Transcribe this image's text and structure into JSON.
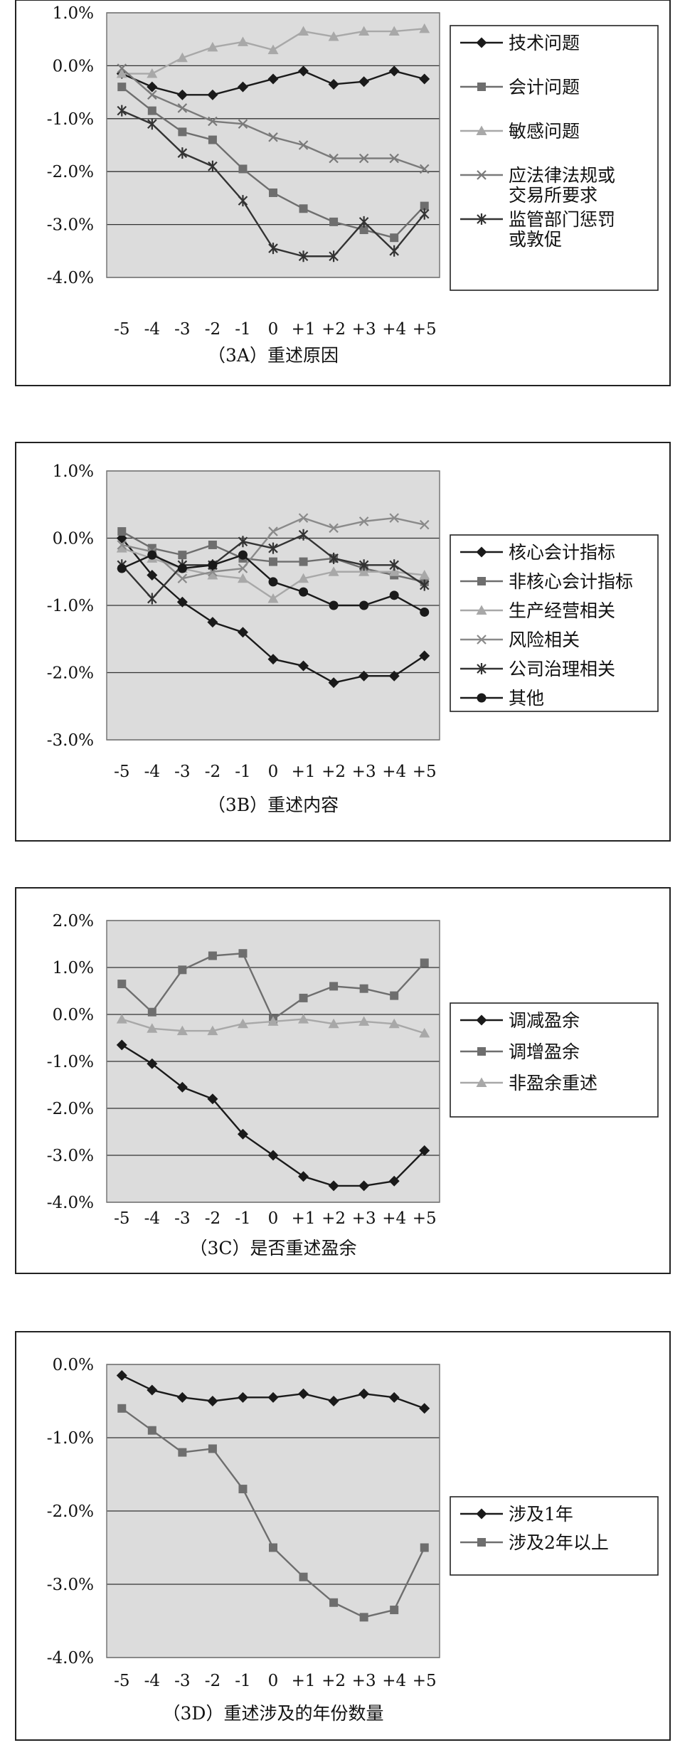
{
  "chart_data": [
    {
      "id": "3A",
      "type": "line",
      "caption": "（3A）重述原因",
      "x": [
        "-5",
        "-4",
        "-3",
        "-2",
        "-1",
        "0",
        "+1",
        "+2",
        "+3",
        "+4",
        "+5"
      ],
      "ylim": [
        -4,
        1
      ],
      "yticks": [
        1,
        0,
        -1,
        -2,
        -3,
        -4
      ],
      "ytick_labels": [
        "1.0%",
        "0.0%",
        "-1.0%",
        "-2.0%",
        "-3.0%",
        "-4.0%"
      ],
      "grid": true,
      "legend_position": "right",
      "series": [
        {
          "name": "技术问题",
          "marker": "diamond",
          "color": "#1a1a1a",
          "values": [
            -0.15,
            -0.4,
            -0.55,
            -0.55,
            -0.4,
            -0.25,
            -0.1,
            -0.35,
            -0.3,
            -0.1,
            -0.25
          ]
        },
        {
          "name": "会计问题",
          "marker": "square",
          "color": "#6e6e6e",
          "values": [
            -0.4,
            -0.85,
            -1.25,
            -1.4,
            -1.95,
            -2.4,
            -2.7,
            -2.95,
            -3.1,
            -3.25,
            -2.65
          ]
        },
        {
          "name": "敏感问题",
          "marker": "triangle",
          "color": "#a8a8a8",
          "values": [
            -0.15,
            -0.15,
            0.15,
            0.35,
            0.45,
            0.3,
            0.65,
            0.55,
            0.65,
            0.65,
            0.7
          ]
        },
        {
          "name": "应法律法规或交易所要求",
          "marker": "x",
          "color": "#7a7a7a",
          "values": [
            -0.05,
            -0.55,
            -0.8,
            -1.05,
            -1.1,
            -1.35,
            -1.5,
            -1.75,
            -1.75,
            -1.75,
            -1.95
          ]
        },
        {
          "name": "监管部门惩罚或敦促",
          "marker": "star",
          "color": "#333333",
          "values": [
            -0.85,
            -1.1,
            -1.65,
            -1.9,
            -2.55,
            -3.45,
            -3.6,
            -3.6,
            -2.95,
            -3.5,
            -2.8
          ]
        }
      ]
    },
    {
      "id": "3B",
      "type": "line",
      "caption": "（3B）重述内容",
      "x": [
        "-5",
        "-4",
        "-3",
        "-2",
        "-1",
        "0",
        "+1",
        "+2",
        "+3",
        "+4",
        "+5"
      ],
      "ylim": [
        -3,
        1
      ],
      "yticks": [
        1,
        0,
        -1,
        -2,
        -3
      ],
      "ytick_labels": [
        "1.0%",
        "0.0%",
        "-1.0%",
        "-2.0%",
        "-3.0%"
      ],
      "grid": true,
      "legend_position": "right",
      "series": [
        {
          "name": "核心会计指标",
          "marker": "diamond",
          "color": "#1a1a1a",
          "values": [
            0.0,
            -0.55,
            -0.95,
            -1.25,
            -1.4,
            -1.8,
            -1.9,
            -2.15,
            -2.05,
            -2.05,
            -1.75
          ]
        },
        {
          "name": "非核心会计指标",
          "marker": "square",
          "color": "#6e6e6e",
          "values": [
            0.1,
            -0.15,
            -0.25,
            -0.1,
            -0.3,
            -0.35,
            -0.35,
            -0.3,
            -0.45,
            -0.55,
            -0.65
          ]
        },
        {
          "name": "生产经营相关",
          "marker": "triangle",
          "color": "#a8a8a8",
          "values": [
            -0.15,
            -0.3,
            -0.45,
            -0.55,
            -0.6,
            -0.9,
            -0.6,
            -0.5,
            -0.5,
            -0.5,
            -0.55
          ]
        },
        {
          "name": "风险相关",
          "marker": "x",
          "color": "#8a8a8a",
          "values": [
            -0.1,
            -0.2,
            -0.6,
            -0.5,
            -0.45,
            0.1,
            0.3,
            0.15,
            0.25,
            0.3,
            0.2
          ]
        },
        {
          "name": "公司治理相关",
          "marker": "star",
          "color": "#333333",
          "values": [
            -0.4,
            -0.9,
            -0.4,
            -0.4,
            -0.05,
            -0.15,
            0.05,
            -0.3,
            -0.4,
            -0.4,
            -0.7
          ]
        },
        {
          "name": "其他",
          "marker": "circle",
          "color": "#1a1a1a",
          "values": [
            -0.45,
            -0.25,
            -0.45,
            -0.4,
            -0.25,
            -0.65,
            -0.8,
            -1.0,
            -1.0,
            -0.85,
            -1.1
          ]
        }
      ]
    },
    {
      "id": "3C",
      "type": "line",
      "caption": "（3C）是否重述盈余",
      "x": [
        "-5",
        "-4",
        "-3",
        "-2",
        "-1",
        "0",
        "+1",
        "+2",
        "+3",
        "+4",
        "+5"
      ],
      "ylim": [
        -4,
        2
      ],
      "yticks": [
        2,
        1,
        0,
        -1,
        -2,
        -3,
        -4
      ],
      "ytick_labels": [
        "2.0%",
        "1.0%",
        "0.0%",
        "-1.0%",
        "-2.0%",
        "-3.0%",
        "-4.0%"
      ],
      "grid": true,
      "legend_position": "right",
      "series": [
        {
          "name": "调减盈余",
          "marker": "diamond",
          "color": "#1a1a1a",
          "values": [
            -0.65,
            -1.05,
            -1.55,
            -1.8,
            -2.55,
            -3.0,
            -3.45,
            -3.65,
            -3.65,
            -3.55,
            -2.9
          ]
        },
        {
          "name": "调增盈余",
          "marker": "square",
          "color": "#6e6e6e",
          "values": [
            0.65,
            0.05,
            0.95,
            1.25,
            1.3,
            -0.1,
            0.35,
            0.6,
            0.55,
            0.4,
            1.1
          ]
        },
        {
          "name": "非盈余重述",
          "marker": "triangle",
          "color": "#a8a8a8",
          "values": [
            -0.1,
            -0.3,
            -0.35,
            -0.35,
            -0.2,
            -0.15,
            -0.1,
            -0.2,
            -0.15,
            -0.2,
            -0.4
          ]
        }
      ]
    },
    {
      "id": "3D",
      "type": "line",
      "caption": "（3D）重述涉及的年份数量",
      "x": [
        "-5",
        "-4",
        "-3",
        "-2",
        "-1",
        "0",
        "+1",
        "+2",
        "+3",
        "+4",
        "+5"
      ],
      "ylim": [
        -4,
        0
      ],
      "yticks": [
        0,
        -1,
        -2,
        -3,
        -4
      ],
      "ytick_labels": [
        "0.0%",
        "-1.0%",
        "-2.0%",
        "-3.0%",
        "-4.0%"
      ],
      "grid": true,
      "legend_position": "right",
      "series": [
        {
          "name": "涉及1年",
          "marker": "diamond",
          "color": "#1a1a1a",
          "values": [
            -0.15,
            -0.35,
            -0.45,
            -0.5,
            -0.45,
            -0.45,
            -0.4,
            -0.5,
            -0.4,
            -0.45,
            -0.6
          ]
        },
        {
          "name": "涉及2年以上",
          "marker": "square",
          "color": "#6e6e6e",
          "values": [
            -0.6,
            -0.9,
            -1.2,
            -1.15,
            -1.7,
            -2.5,
            -2.9,
            -3.25,
            -3.45,
            -3.35,
            -2.5
          ]
        }
      ]
    }
  ]
}
